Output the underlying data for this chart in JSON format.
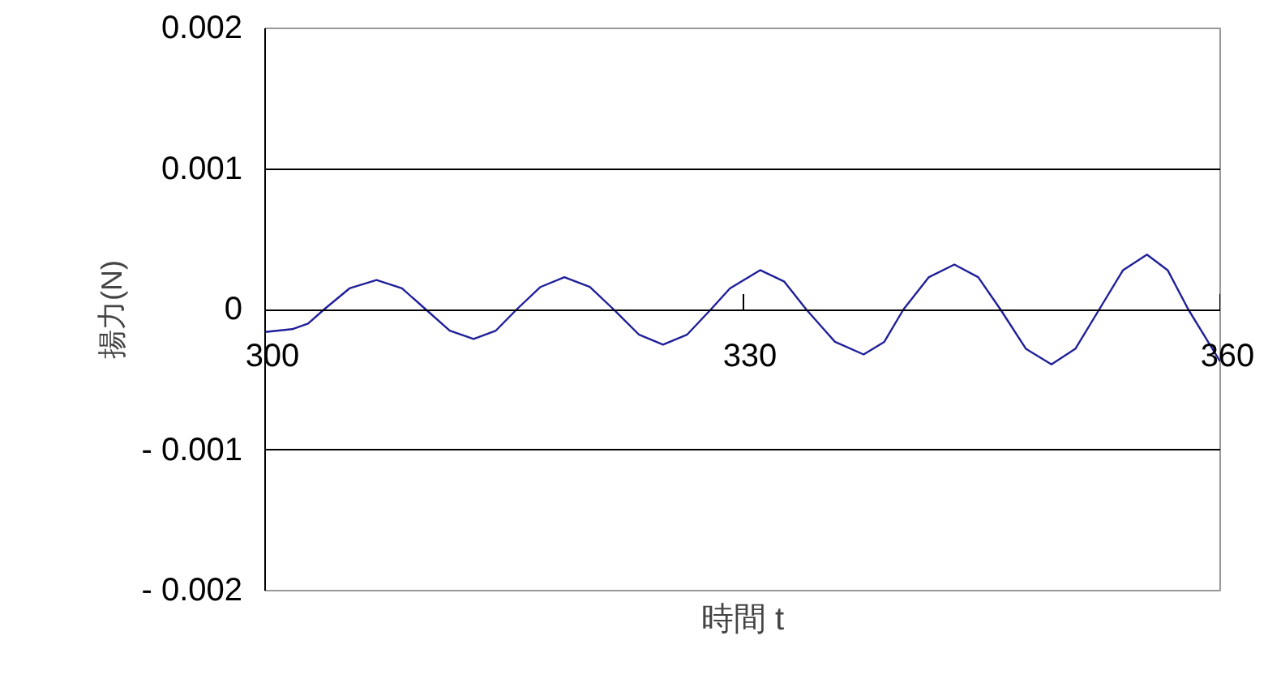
{
  "chart_data": {
    "type": "line",
    "xlabel": "時間 t",
    "ylabel": "揚力(N)",
    "x": [
      300,
      301.7,
      302.7,
      303.7,
      305.3,
      307.0,
      308.6,
      310.1,
      311.6,
      313.1,
      314.5,
      315.8,
      317.3,
      318.8,
      320.4,
      321.9,
      323.5,
      325.0,
      326.5,
      328.0,
      329.2,
      331.1,
      332.6,
      334.0,
      335.8,
      337.6,
      338.9,
      340.1,
      341.7,
      343.3,
      344.8,
      346.2,
      347.8,
      349.4,
      350.9,
      352.4,
      353.9,
      355.4,
      356.7,
      358.0,
      360
    ],
    "series": [
      {
        "color": "#1f1f9a",
        "values": [
          -0.00016,
          -0.00014,
          -0.0001,
          0,
          0.00015,
          0.00021,
          0.00015,
          0,
          -0.00015,
          -0.00021,
          -0.00015,
          0,
          0.00016,
          0.00023,
          0.00016,
          0,
          -0.00018,
          -0.00025,
          -0.00018,
          0,
          0.00015,
          0.00028,
          0.0002,
          0,
          -0.00023,
          -0.00032,
          -0.00023,
          0,
          0.00023,
          0.00032,
          0.00023,
          0,
          -0.00028,
          -0.00039,
          -0.00028,
          0,
          0.00028,
          0.00039,
          0.00028,
          0,
          -0.00037
        ]
      }
    ],
    "xlim": [
      300,
      360
    ],
    "xticks": [
      300,
      330,
      360
    ],
    "ylim": [
      -0.002,
      0.002
    ],
    "yticks": [
      {
        "value": -0.002,
        "label": "- 0.002"
      },
      {
        "value": -0.001,
        "label": "- 0.001"
      },
      0,
      0.001,
      0.002
    ],
    "grid": "y",
    "marker": "none",
    "line_style": "solid"
  }
}
